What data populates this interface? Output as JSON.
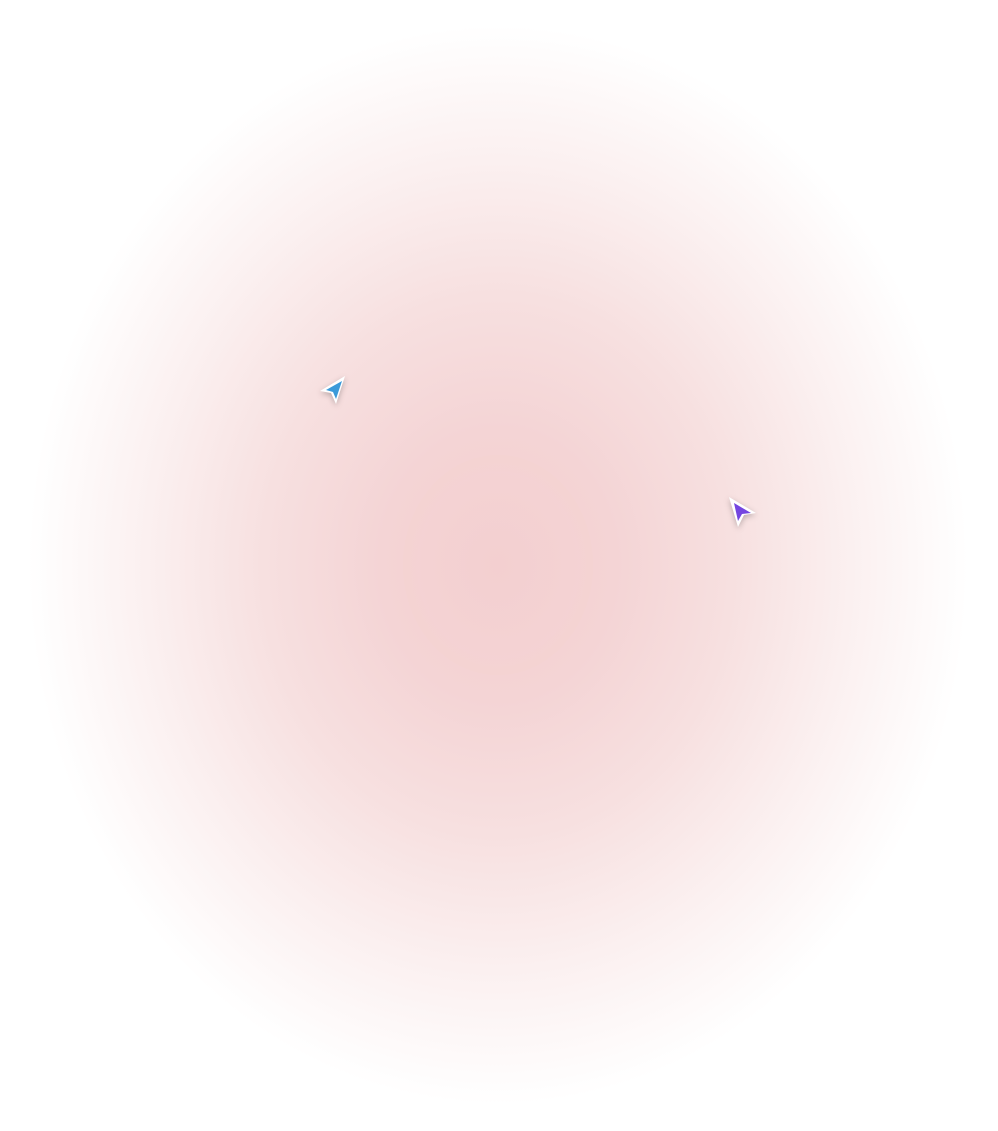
{
  "background": {
    "center_color": "#f3cfd0",
    "edge_color": "#ffffff"
  },
  "cursors": [
    {
      "icon": "cursor-arrow-icon",
      "color": "#3b9ad9",
      "direction": "up-right"
    },
    {
      "icon": "cursor-arrow-icon",
      "color": "#7446e0",
      "direction": "up-left"
    }
  ]
}
